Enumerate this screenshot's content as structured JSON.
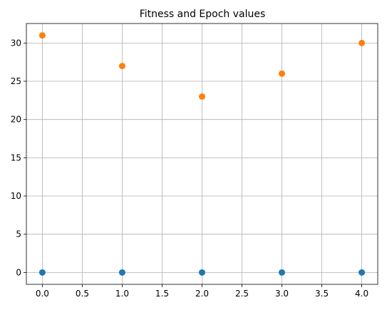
{
  "chart_data": {
    "type": "scatter",
    "title": "Fitness and Epoch values",
    "xlabel": "",
    "ylabel": "",
    "xlim": [
      -0.2,
      4.2
    ],
    "ylim": [
      -1.55,
      32.55
    ],
    "xticks": [
      0.0,
      0.5,
      1.0,
      1.5,
      2.0,
      2.5,
      3.0,
      3.5,
      4.0
    ],
    "xtick_labels": [
      "0.0",
      "0.5",
      "1.0",
      "1.5",
      "2.0",
      "2.5",
      "3.0",
      "3.5",
      "4.0"
    ],
    "yticks": [
      0,
      5,
      10,
      15,
      20,
      25,
      30
    ],
    "ytick_labels": [
      "0",
      "5",
      "10",
      "15",
      "20",
      "25",
      "30"
    ],
    "grid": true,
    "legend": "none",
    "series": [
      {
        "color": "#1f77b4",
        "x": [
          0,
          1,
          2,
          3,
          4
        ],
        "y": [
          0,
          0,
          0,
          0,
          0
        ]
      },
      {
        "color": "#ff7f0e",
        "x": [
          0,
          1,
          2,
          3,
          4
        ],
        "y": [
          31,
          27,
          23,
          26,
          30
        ]
      }
    ]
  }
}
